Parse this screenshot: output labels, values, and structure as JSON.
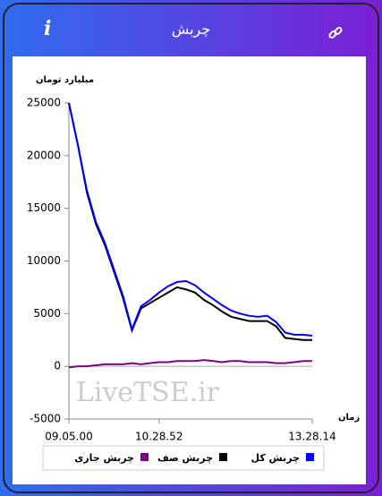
{
  "header": {
    "title": "چربش",
    "info": "i"
  },
  "watermark": "LiveTSE.ir",
  "chart_data": {
    "type": "line",
    "y_label": "میلیارد تومان",
    "x_label": "زمان",
    "categories": [
      "09.05.00",
      null,
      null,
      null,
      null,
      null,
      null,
      null,
      null,
      null,
      "10.28.52",
      null,
      null,
      null,
      null,
      null,
      null,
      null,
      null,
      null,
      null,
      null,
      null,
      null,
      null,
      null,
      null,
      "13.28.14"
    ],
    "series": [
      {
        "name": "چربش کل",
        "color": "#0000ff",
        "values": [
          25000,
          21000,
          16700,
          13700,
          11700,
          9200,
          6700,
          3500,
          5700,
          6300,
          7000,
          7600,
          8000,
          8100,
          7700,
          7000,
          6400,
          5800,
          5300,
          5000,
          4800,
          4700,
          4800,
          4200,
          3200,
          3000,
          3000,
          2900
        ]
      },
      {
        "name": "چربش صف",
        "color": "#000000",
        "values": [
          25000,
          21000,
          16500,
          13500,
          11500,
          9000,
          6500,
          3400,
          5500,
          6000,
          6500,
          7000,
          7500,
          7300,
          7000,
          6300,
          5800,
          5200,
          4700,
          4500,
          4300,
          4300,
          4300,
          3800,
          2700,
          2600,
          2500,
          2500
        ]
      },
      {
        "name": "چربش جاری",
        "color": "#800080",
        "values": [
          -100,
          0,
          0,
          100,
          200,
          200,
          200,
          300,
          200,
          300,
          400,
          400,
          500,
          500,
          500,
          600,
          500,
          400,
          500,
          500,
          400,
          400,
          400,
          300,
          300,
          400,
          500,
          500
        ]
      }
    ],
    "ylim": [
      -5000,
      25000
    ],
    "yticks": [
      -5000,
      0,
      5000,
      10000,
      15000,
      20000,
      25000
    ]
  }
}
